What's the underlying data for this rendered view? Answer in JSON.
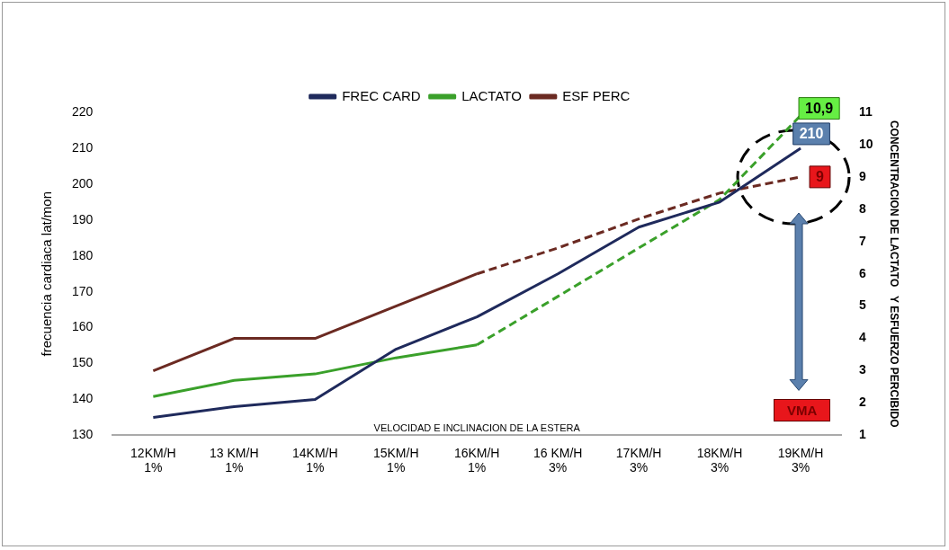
{
  "chart_data": {
    "type": "line",
    "categories": [
      "12KM/H 1%",
      "13 KM/H 1%",
      "14KM/H 1%",
      "15KM/H 1%",
      "16KM/H 1%",
      "16 KM/H 3%",
      "17KM/H 3%",
      "18KM/H 3%",
      "19KM/H 3%"
    ],
    "series": [
      {
        "name": "FREC CARD",
        "color": "#1f2a5c",
        "values": [
          135,
          138,
          140,
          154,
          163,
          175,
          188,
          195,
          210
        ],
        "value_labels": [
          null,
          null,
          null,
          null,
          null,
          null,
          null,
          null,
          "210"
        ],
        "line_style": "solid"
      },
      {
        "name": "LACTATO",
        "color": "#3aa02a",
        "axis": "y2",
        "values": [
          2.2,
          2.7,
          2.9,
          3.4,
          3.8,
          null,
          null,
          null,
          null
        ],
        "line_style": "solid"
      },
      {
        "color": "#3aa02a",
        "axis": "y2",
        "values": [
          null,
          null,
          null,
          null,
          3.8,
          5.3,
          6.8,
          8.3,
          10.9
        ],
        "value_labels": [
          null,
          null,
          null,
          null,
          null,
          null,
          null,
          null,
          "10,9"
        ],
        "line_style": "dashed"
      },
      {
        "name": "ESF PERC",
        "color": "#6b2a22",
        "axis": "y2",
        "values": [
          3,
          4,
          4,
          5,
          6,
          null,
          null,
          null,
          null
        ],
        "line_style": "solid"
      },
      {
        "color": "#6b2a22",
        "axis": "y2",
        "values": [
          null,
          null,
          null,
          null,
          6,
          6.8,
          7.7,
          8.5,
          9
        ],
        "value_labels": [
          null,
          null,
          null,
          null,
          null,
          null,
          null,
          null,
          "9"
        ],
        "line_style": "dashed"
      }
    ],
    "ylim": [
      130,
      220
    ],
    "yticks": [
      130,
      140,
      150,
      160,
      170,
      180,
      190,
      200,
      210,
      220
    ],
    "y2lim": [
      1,
      11
    ],
    "y2ticks": [
      1,
      2,
      3,
      4,
      5,
      6,
      7,
      8,
      9,
      10,
      11
    ],
    "xlabel": "VELOCIDAD E INCLINACION DE LA ESTERA",
    "ylabel": "frecuencia cardiaca lat/mon",
    "y2label": "CONCENTRACION DE LACTATO   Y ESFUERZO PERCIBIDO",
    "annotations": [
      "VMA"
    ],
    "legend": "top",
    "grid": false,
    "marker": "none"
  }
}
